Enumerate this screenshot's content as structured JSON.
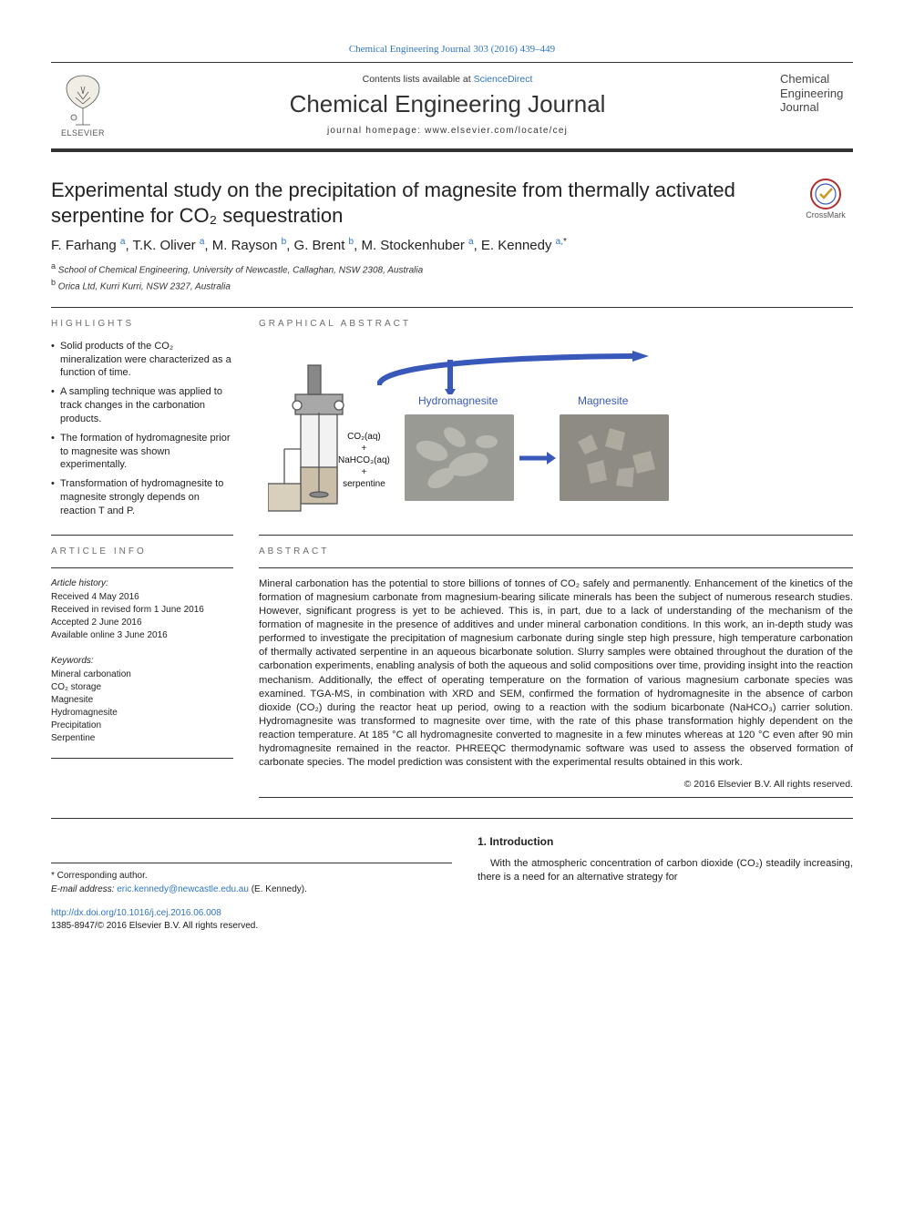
{
  "banner": {
    "citation": "Chemical Engineering Journal 303 (2016) 439–449"
  },
  "header": {
    "contents_prefix": "Contents lists available at ",
    "contents_link": "ScienceDirect",
    "journal_title": "Chemical Engineering Journal",
    "homepage_prefix": "journal homepage: ",
    "homepage_url": "www.elsevier.com/locate/cej",
    "publisher": "ELSEVIER",
    "cover_line1": "Chemical",
    "cover_line2": "Engineering",
    "cover_line3": "Journal"
  },
  "article": {
    "title": "Experimental study on the precipitation of magnesite from thermally activated serpentine for CO₂ sequestration",
    "crossmark_label": "CrossMark",
    "authors_html": "F. Farhang <sup>a</sup>, T.K. Oliver <sup>a</sup>, M. Rayson <sup>b</sup>, G. Brent <sup>b</sup>, M. Stockenhuber <sup>a</sup>, E. Kennedy <sup>a,</sup><sup class='star'>*</sup>",
    "affiliations": [
      {
        "sup": "a",
        "text": "School of Chemical Engineering, University of Newcastle, Callaghan, NSW 2308, Australia"
      },
      {
        "sup": "b",
        "text": "Orica Ltd, Kurri Kurri, NSW 2327, Australia"
      }
    ]
  },
  "highlights": {
    "head": "HIGHLIGHTS",
    "items": [
      "Solid products of the CO₂ mineralization were characterized as a function of time.",
      "A sampling technique was applied to track changes in the carbonation products.",
      "The formation of hydromagnesite prior to magnesite was shown experimentally.",
      "Transformation of hydromagnesite to magnesite strongly depends on reaction T and P."
    ]
  },
  "graphical_abstract": {
    "head": "GRAPHICAL ABSTRACT",
    "label_hydro": "Hydromagnesite",
    "label_magnesite": "Magnesite",
    "reactants": {
      "co2": "CO₂(aq)",
      "plus1": "+",
      "nahco3": "NaHCO₃(aq)",
      "plus2": "+",
      "serp": "serpentine"
    },
    "diagram": {
      "schematic_colors": {
        "arrow": "#3959ba",
        "reactor_stroke": "#555555",
        "reactor_fill_base": "#cbbfaa",
        "reactor_fill_top": "#eaeaea",
        "stirrer_fill": "#888888"
      },
      "sem_placeholder_colors": {
        "hydro_bg": "#9a9a94",
        "magnesite_bg": "#8e8b84"
      }
    }
  },
  "article_info": {
    "head": "ARTICLE INFO",
    "history_title": "Article history:",
    "history": [
      "Received 4 May 2016",
      "Received in revised form 1 June 2016",
      "Accepted 2 June 2016",
      "Available online 3 June 2016"
    ],
    "keywords_title": "Keywords:",
    "keywords": [
      "Mineral carbonation",
      "CO₂ storage",
      "Magnesite",
      "Hydromagnesite",
      "Precipitation",
      "Serpentine"
    ]
  },
  "abstract": {
    "head": "ABSTRACT",
    "text": "Mineral carbonation has the potential to store billions of tonnes of CO₂ safely and permanently. Enhancement of the kinetics of the formation of magnesium carbonate from magnesium-bearing silicate minerals has been the subject of numerous research studies. However, significant progress is yet to be achieved. This is, in part, due to a lack of understanding of the mechanism of the formation of magnesite in the presence of additives and under mineral carbonation conditions. In this work, an in-depth study was performed to investigate the precipitation of magnesium carbonate during single step high pressure, high temperature carbonation of thermally activated serpentine in an aqueous bicarbonate solution. Slurry samples were obtained throughout the duration of the carbonation experiments, enabling analysis of both the aqueous and solid compositions over time, providing insight into the reaction mechanism. Additionally, the effect of operating temperature on the formation of various magnesium carbonate species was examined. TGA-MS, in combination with XRD and SEM, confirmed the formation of hydromagnesite in the absence of carbon dioxide (CO₂) during the reactor heat up period, owing to a reaction with the sodium bicarbonate (NaHCO₃) carrier solution. Hydromagnesite was transformed to magnesite over time, with the rate of this phase transformation highly dependent on the reaction temperature. At 185 °C all hydromagnesite converted to magnesite in a few minutes whereas at 120 °C even after 90 min hydromagnesite remained in the reactor. PHREEQC thermodynamic software was used to assess the observed formation of carbonate species. The model prediction was consistent with the experimental results obtained in this work.",
    "copyright": "© 2016 Elsevier B.V. All rights reserved."
  },
  "introduction": {
    "heading": "1. Introduction",
    "para": "With the atmospheric concentration of carbon dioxide (CO₂) steadily increasing, there is a need for an alternative strategy for"
  },
  "corresponding": {
    "star": "* Corresponding author.",
    "email_label": "E-mail address: ",
    "email": "eric.kennedy@newcastle.edu.au",
    "email_suffix": " (E. Kennedy)."
  },
  "footer": {
    "doi": "http://dx.doi.org/10.1016/j.cej.2016.06.008",
    "issn_line": "1385-8947/© 2016 Elsevier B.V. All rights reserved."
  },
  "colors": {
    "link": "#2f75c1",
    "accent_blue": "#3959ba",
    "text": "#1a1a1a",
    "rule": "#333333"
  }
}
